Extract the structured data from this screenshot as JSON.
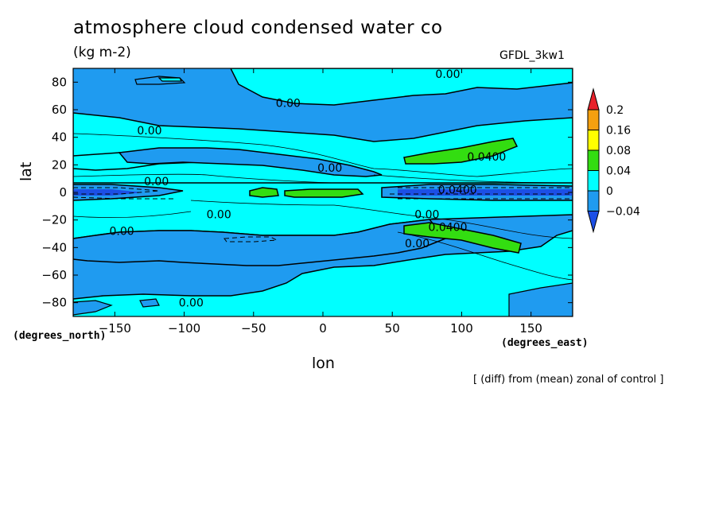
{
  "chart_data": {
    "type": "contour",
    "title": "atmosphere cloud condensed water co",
    "units": "(kg m-2)",
    "model": "GFDL_3kw1",
    "xlabel": "lon",
    "ylabel": "lat",
    "x_unit_label": "(degrees_east)",
    "y_unit_label": "(degrees_north)",
    "note": "[ (diff) from (mean) zonal of control ]",
    "xlim": [
      -180,
      180
    ],
    "ylim": [
      -90,
      90
    ],
    "x_ticks": [
      -150,
      -100,
      -50,
      0,
      50,
      100,
      150
    ],
    "y_ticks": [
      -80,
      -60,
      -40,
      -20,
      0,
      20,
      40,
      60,
      80
    ],
    "colorbar": {
      "levels": [
        "0.2",
        "0.16",
        "0.08",
        "0.04",
        "0",
        "-0.04"
      ],
      "colors": [
        "#e8212a",
        "#f5a00f",
        "#ffff00",
        "#33dd11",
        "#00ffff",
        "#1f9bf0",
        "#1c4fe6"
      ]
    },
    "contour_labels": [
      {
        "text": "0.00",
        "lon": 90,
        "lat": 86
      },
      {
        "text": "0.00",
        "lon": -25,
        "lat": 65
      },
      {
        "text": "0.00",
        "lon": -125,
        "lat": 45
      },
      {
        "text": "0.00",
        "lon": 5,
        "lat": 18
      },
      {
        "text": "0.00",
        "lon": -120,
        "lat": 8
      },
      {
        "text": "0.00",
        "lon": -75,
        "lat": -16
      },
      {
        "text": "0.00",
        "lon": -145,
        "lat": -28
      },
      {
        "text": "0.00",
        "lon": 75,
        "lat": -16
      },
      {
        "text": "0.00",
        "lon": 68,
        "lat": -37
      },
      {
        "text": "0.00",
        "lon": -95,
        "lat": -80
      },
      {
        "text": "0.0400",
        "lon": 118,
        "lat": 26
      },
      {
        "text": "0.0400",
        "lon": 97,
        "lat": 2
      },
      {
        "text": "0.0400",
        "lon": 90,
        "lat": -25
      }
    ],
    "regions": [
      {
        "level": "0 to 0.04",
        "color": "#00ffff",
        "description": "tropics and mid-latitude bands"
      },
      {
        "level": "-0.04 to 0",
        "color": "#1f9bf0",
        "description": "background"
      },
      {
        "level": "0.04 to 0.08",
        "color": "#33dd11",
        "description": "subtropical east Pacific and equatorial Atlantic-Africa"
      },
      {
        "level": "< -0.04",
        "color": "#1c4fe6",
        "description": "equatorial band"
      }
    ]
  }
}
